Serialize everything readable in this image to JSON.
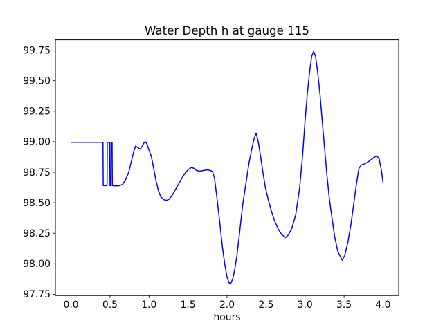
{
  "chart_data": {
    "type": "line",
    "title": "Water Depth h at gauge 115",
    "xlabel": "hours",
    "ylabel": "",
    "grid": false,
    "legend": false,
    "background_color": "#ffffff",
    "axis_color": "#000000",
    "xlim": [
      -0.2,
      4.2
    ],
    "ylim": [
      97.74,
      99.835
    ],
    "x_ticks": {
      "values": [
        0.0,
        0.5,
        1.0,
        1.5,
        2.0,
        2.5,
        3.0,
        3.5,
        4.0
      ],
      "labels": [
        "0.0",
        "0.5",
        "1.0",
        "1.5",
        "2.0",
        "2.5",
        "3.0",
        "3.5",
        "4.0"
      ]
    },
    "y_ticks": {
      "values": [
        97.75,
        98.0,
        98.25,
        98.5,
        98.75,
        99.0,
        99.25,
        99.5,
        99.75
      ],
      "labels": [
        "97.75",
        "98.00",
        "98.25",
        "98.50",
        "98.75",
        "99.00",
        "99.25",
        "99.50",
        "99.75"
      ]
    },
    "series": [
      {
        "name": "water-depth-h",
        "color": "#0000ff",
        "line_width": 1.5,
        "points": [
          [
            0.0,
            98.995
          ],
          [
            0.2,
            98.995
          ],
          [
            0.41,
            98.995
          ],
          [
            0.413,
            98.64
          ],
          [
            0.462,
            98.64
          ],
          [
            0.465,
            98.995
          ],
          [
            0.497,
            98.995
          ],
          [
            0.5,
            98.64
          ],
          [
            0.512,
            98.64
          ],
          [
            0.515,
            98.995
          ],
          [
            0.527,
            98.995
          ],
          [
            0.53,
            98.64
          ],
          [
            0.58,
            98.638
          ],
          [
            0.62,
            98.64
          ],
          [
            0.66,
            98.65
          ],
          [
            0.7,
            98.69
          ],
          [
            0.74,
            98.75
          ],
          [
            0.77,
            98.83
          ],
          [
            0.8,
            98.91
          ],
          [
            0.827,
            98.965
          ],
          [
            0.85,
            98.955
          ],
          [
            0.886,
            98.94
          ],
          [
            0.91,
            98.96
          ],
          [
            0.935,
            98.99
          ],
          [
            0.954,
            99.0
          ],
          [
            0.975,
            98.98
          ],
          [
            1.0,
            98.93
          ],
          [
            1.03,
            98.88
          ],
          [
            1.06,
            98.78
          ],
          [
            1.09,
            98.68
          ],
          [
            1.12,
            98.6
          ],
          [
            1.15,
            98.55
          ],
          [
            1.19,
            98.525
          ],
          [
            1.23,
            98.52
          ],
          [
            1.26,
            98.53
          ],
          [
            1.3,
            98.565
          ],
          [
            1.34,
            98.61
          ],
          [
            1.38,
            98.655
          ],
          [
            1.42,
            98.7
          ],
          [
            1.46,
            98.74
          ],
          [
            1.5,
            98.77
          ],
          [
            1.546,
            98.79
          ],
          [
            1.58,
            98.78
          ],
          [
            1.61,
            98.765
          ],
          [
            1.649,
            98.758
          ],
          [
            1.7,
            98.765
          ],
          [
            1.752,
            98.77
          ],
          [
            1.78,
            98.765
          ],
          [
            1.814,
            98.757
          ],
          [
            1.84,
            98.7
          ],
          [
            1.865,
            98.57
          ],
          [
            1.885,
            98.46
          ],
          [
            1.91,
            98.32
          ],
          [
            1.94,
            98.14
          ],
          [
            1.97,
            98.0
          ],
          [
            2.0,
            97.89
          ],
          [
            2.025,
            97.845
          ],
          [
            2.045,
            97.835
          ],
          [
            2.075,
            97.88
          ],
          [
            2.1,
            97.96
          ],
          [
            2.125,
            98.06
          ],
          [
            2.16,
            98.25
          ],
          [
            2.2,
            98.48
          ],
          [
            2.24,
            98.65
          ],
          [
            2.28,
            98.82
          ],
          [
            2.32,
            98.95
          ],
          [
            2.345,
            99.02
          ],
          [
            2.373,
            99.07
          ],
          [
            2.4,
            99.0
          ],
          [
            2.43,
            98.88
          ],
          [
            2.46,
            98.75
          ],
          [
            2.49,
            98.63
          ],
          [
            2.53,
            98.52
          ],
          [
            2.57,
            98.43
          ],
          [
            2.61,
            98.35
          ],
          [
            2.66,
            98.28
          ],
          [
            2.7,
            98.24
          ],
          [
            2.752,
            98.215
          ],
          [
            2.79,
            98.24
          ],
          [
            2.83,
            98.29
          ],
          [
            2.88,
            98.4
          ],
          [
            2.93,
            98.62
          ],
          [
            2.97,
            98.9
          ],
          [
            3.0,
            99.17
          ],
          [
            3.03,
            99.4
          ],
          [
            3.06,
            99.58
          ],
          [
            3.085,
            99.7
          ],
          [
            3.11,
            99.74
          ],
          [
            3.135,
            99.7
          ],
          [
            3.16,
            99.58
          ],
          [
            3.19,
            99.4
          ],
          [
            3.22,
            99.17
          ],
          [
            3.25,
            98.95
          ],
          [
            3.28,
            98.73
          ],
          [
            3.31,
            98.54
          ],
          [
            3.34,
            98.4
          ],
          [
            3.38,
            98.22
          ],
          [
            3.42,
            98.1
          ],
          [
            3.476,
            98.03
          ],
          [
            3.51,
            98.07
          ],
          [
            3.55,
            98.18
          ],
          [
            3.59,
            98.33
          ],
          [
            3.63,
            98.52
          ],
          [
            3.66,
            98.66
          ],
          [
            3.69,
            98.78
          ],
          [
            3.72,
            98.81
          ],
          [
            3.77,
            98.82
          ],
          [
            3.82,
            98.84
          ],
          [
            3.88,
            98.87
          ],
          [
            3.92,
            98.885
          ],
          [
            3.95,
            98.86
          ],
          [
            3.98,
            98.76
          ],
          [
            4.0,
            98.665
          ]
        ]
      }
    ]
  }
}
